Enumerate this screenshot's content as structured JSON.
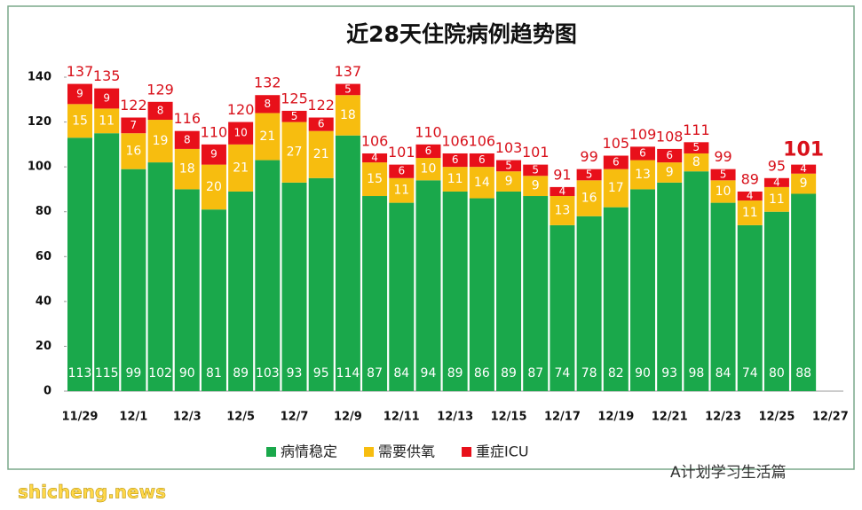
{
  "chart_data": {
    "type": "stacked_bar",
    "title": "近28天住院病例趋势图",
    "categories": [
      "11/29",
      null,
      "12/1",
      null,
      "12/3",
      null,
      "12/5",
      null,
      "12/7",
      null,
      "12/9",
      null,
      "12/11",
      null,
      "12/13",
      null,
      "12/15",
      null,
      "12/17",
      null,
      "12/19",
      null,
      "12/21",
      null,
      "12/23",
      null,
      "12/25",
      null,
      "12/27"
    ],
    "series": [
      {
        "name": "病情稳定",
        "color": "#1aa84b",
        "values": [
          113,
          115,
          99,
          102,
          90,
          81,
          89,
          103,
          93,
          95,
          114,
          87,
          84,
          94,
          89,
          86,
          89,
          87,
          74,
          78,
          82,
          90,
          93,
          98,
          84,
          74,
          80,
          88,
          null
        ]
      },
      {
        "name": "需要供氧",
        "color": "#f7bd0f",
        "values": [
          15,
          11,
          16,
          19,
          18,
          20,
          21,
          21,
          27,
          21,
          18,
          15,
          11,
          10,
          11,
          14,
          9,
          9,
          13,
          16,
          17,
          13,
          9,
          8,
          10,
          11,
          11,
          9,
          null
        ]
      },
      {
        "name": "重症ICU",
        "color": "#e8101a",
        "values": [
          9,
          9,
          7,
          8,
          8,
          9,
          10,
          8,
          5,
          6,
          5,
          4,
          6,
          6,
          6,
          6,
          5,
          5,
          4,
          5,
          6,
          6,
          6,
          5,
          5,
          4,
          4,
          4,
          null
        ]
      }
    ],
    "totals": [
      137,
      135,
      122,
      129,
      116,
      110,
      120,
      132,
      125,
      122,
      137,
      106,
      101,
      110,
      106,
      106,
      103,
      101,
      91,
      99,
      105,
      109,
      108,
      111,
      99,
      89,
      95,
      101,
      null
    ],
    "ylim": [
      0,
      140
    ],
    "yticks": [
      0,
      20,
      40,
      60,
      80,
      100,
      120,
      140
    ],
    "grid": false,
    "legend": "bottom",
    "watermarks": [
      "shicheng.news",
      "A计划学习生活篇"
    ]
  }
}
